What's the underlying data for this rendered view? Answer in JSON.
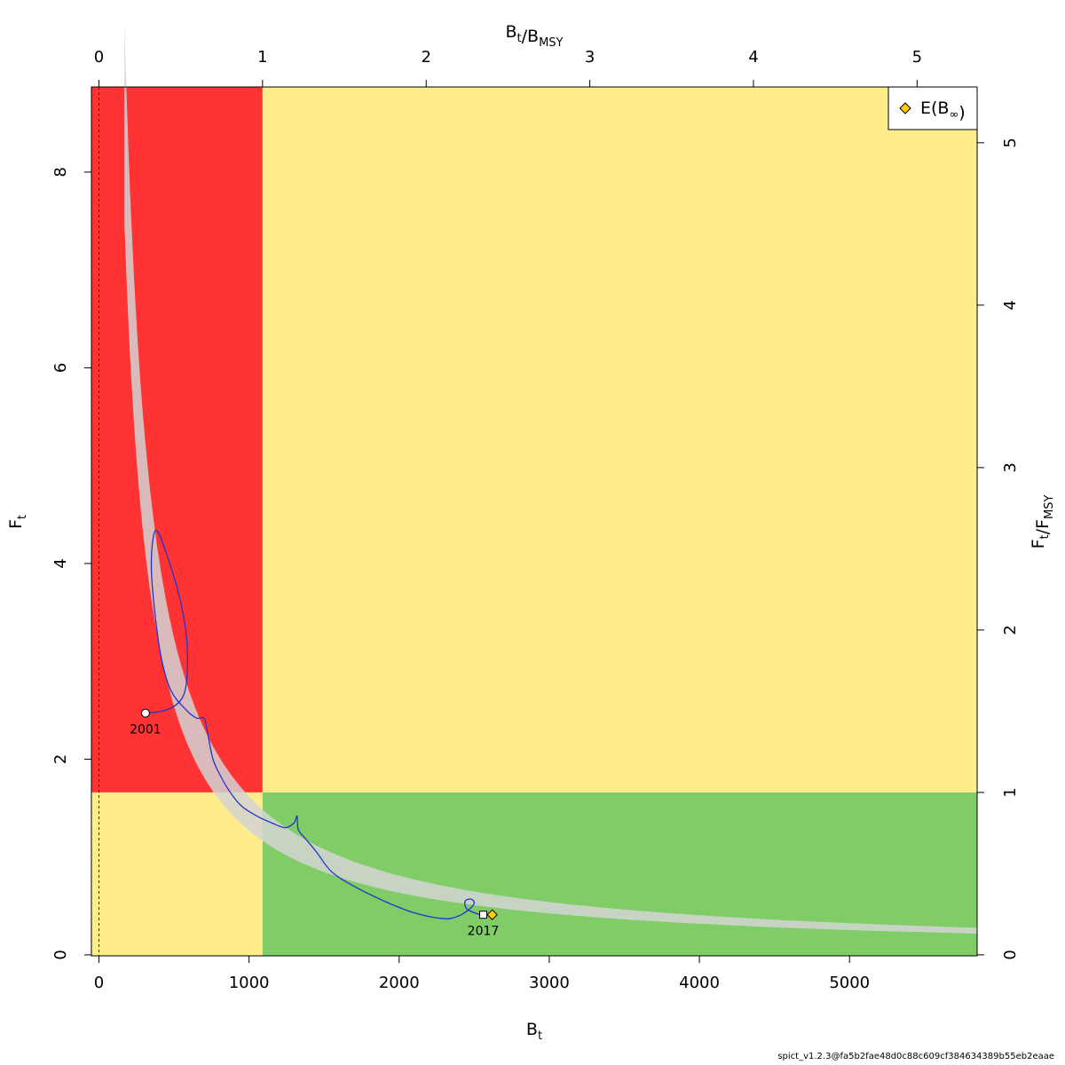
{
  "chart_data": {
    "type": "line",
    "title": "",
    "xlabel": "B",
    "xlabel_sub": "t",
    "ylabel": "F",
    "ylabel_sub": "t",
    "top_label": {
      "num": "B",
      "num_sub": "t",
      "den": "B",
      "den_sub": "MSY"
    },
    "right_label": {
      "num": "F",
      "num_sub": "t",
      "den": "F",
      "den_sub": "MSY"
    },
    "xlim": [
      -50,
      5850
    ],
    "ylim": [
      -0.01,
      8.87
    ],
    "x_ticks": [
      0,
      1000,
      2000,
      3000,
      4000,
      5000
    ],
    "y_ticks": [
      0,
      2,
      4,
      6,
      8
    ],
    "top_ticks": [
      0,
      1,
      2,
      3,
      4,
      5
    ],
    "right_ticks": [
      0,
      1,
      2,
      3,
      4,
      5
    ],
    "Bmsy": 1090,
    "Fmsy": 1.66,
    "zones": {
      "red": "#FF3333",
      "yellow": "#FFEC8B",
      "green": "#80CC66",
      "band": "#D3D3D3",
      "trajectory": "#2233CC",
      "diamond": "#FFCC00"
    },
    "msy_band": {
      "lower_F_times_B": 1270,
      "upper_F_times_B": 1620,
      "x_start": 170,
      "x_end": 5850
    },
    "trajectory": [
      [
        310,
        2.47
      ],
      [
        420,
        2.49
      ],
      [
        510,
        2.55
      ],
      [
        570,
        2.68
      ],
      [
        590,
        2.95
      ],
      [
        580,
        3.3
      ],
      [
        530,
        3.7
      ],
      [
        450,
        4.1
      ],
      [
        390,
        4.33
      ],
      [
        360,
        4.25
      ],
      [
        350,
        3.9
      ],
      [
        380,
        3.4
      ],
      [
        420,
        3.0
      ],
      [
        480,
        2.7
      ],
      [
        570,
        2.52
      ],
      [
        650,
        2.42
      ],
      [
        700,
        2.42
      ],
      [
        720,
        2.3
      ],
      [
        760,
        2.0
      ],
      [
        820,
        1.8
      ],
      [
        880,
        1.65
      ],
      [
        950,
        1.52
      ],
      [
        1050,
        1.42
      ],
      [
        1150,
        1.35
      ],
      [
        1240,
        1.3
      ],
      [
        1300,
        1.35
      ],
      [
        1320,
        1.42
      ],
      [
        1325,
        1.3
      ],
      [
        1340,
        1.25
      ],
      [
        1380,
        1.18
      ],
      [
        1450,
        1.05
      ],
      [
        1550,
        0.85
      ],
      [
        1700,
        0.7
      ],
      [
        1900,
        0.55
      ],
      [
        2100,
        0.43
      ],
      [
        2300,
        0.37
      ],
      [
        2400,
        0.4
      ],
      [
        2470,
        0.47
      ],
      [
        2500,
        0.53
      ],
      [
        2480,
        0.57
      ],
      [
        2440,
        0.55
      ],
      [
        2450,
        0.47
      ],
      [
        2520,
        0.42
      ],
      [
        2560,
        0.41
      ]
    ],
    "start_point": {
      "x": 310,
      "y": 2.47,
      "label": "2001"
    },
    "end_point": {
      "x": 2560,
      "y": 0.41,
      "label": "2017"
    },
    "equilibrium_point": {
      "x": 2620,
      "y": 0.41
    },
    "legend": {
      "position": "top-right",
      "label": "E(B",
      "label_sub": "∞",
      "label_close": ")"
    }
  },
  "footer": "spict_v1.2.3@fa5b2fae48d0c88c609cf384634389b55eb2eaae"
}
